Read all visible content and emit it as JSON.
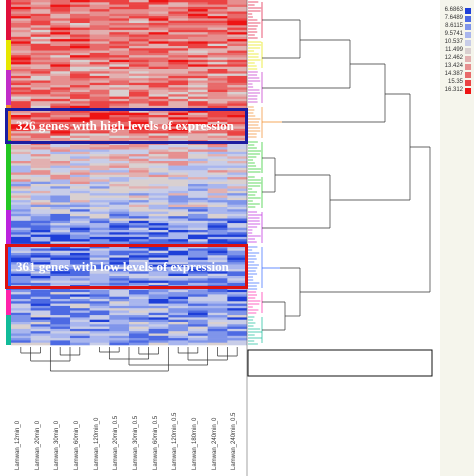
{
  "chart_data": {
    "type": "heatmap",
    "columns": [
      "Lamwan_12min_0",
      "Lamwan_20min_0",
      "Lamwan_30min_0",
      "Lamwan_60min_0",
      "Lamwan_120min_0",
      "Lamwan_20min_0.5",
      "Lamwan_30min_0.5",
      "Lamwan_60min_0.5",
      "Lamwan_120min_0.5",
      "Lamwan_180min_0",
      "Lamwan_240min_0",
      "Lamwan_240min_0.5"
    ],
    "legend": {
      "values": [
        "6.6863",
        "7.6489",
        "8.6115",
        "9.5741",
        "10.537",
        "11.499",
        "12.462",
        "13.424",
        "14.387",
        "15.35",
        "16.312"
      ],
      "colors": [
        "#1e3fd8",
        "#4d6ae3",
        "#7f95ea",
        "#a9b6ee",
        "#c8cde8",
        "#d9d0d0",
        "#e2b0b0",
        "#e68f8f",
        "#e86a6a",
        "#eb4343",
        "#ee1414"
      ]
    },
    "annotations": [
      {
        "text": "326 genes with high levels of expression",
        "color": "#1c1ca0"
      },
      {
        "text": "361 genes with low levels of expression",
        "color": "#dd1111"
      }
    ],
    "cluster_colors": [
      "#e0103a",
      "#e6e600",
      "#c02cc8",
      "#f28c28",
      "#22c722",
      "#22c722",
      "#bb22dd",
      "#3366ff",
      "#ff22aa",
      "#11bb99"
    ]
  }
}
